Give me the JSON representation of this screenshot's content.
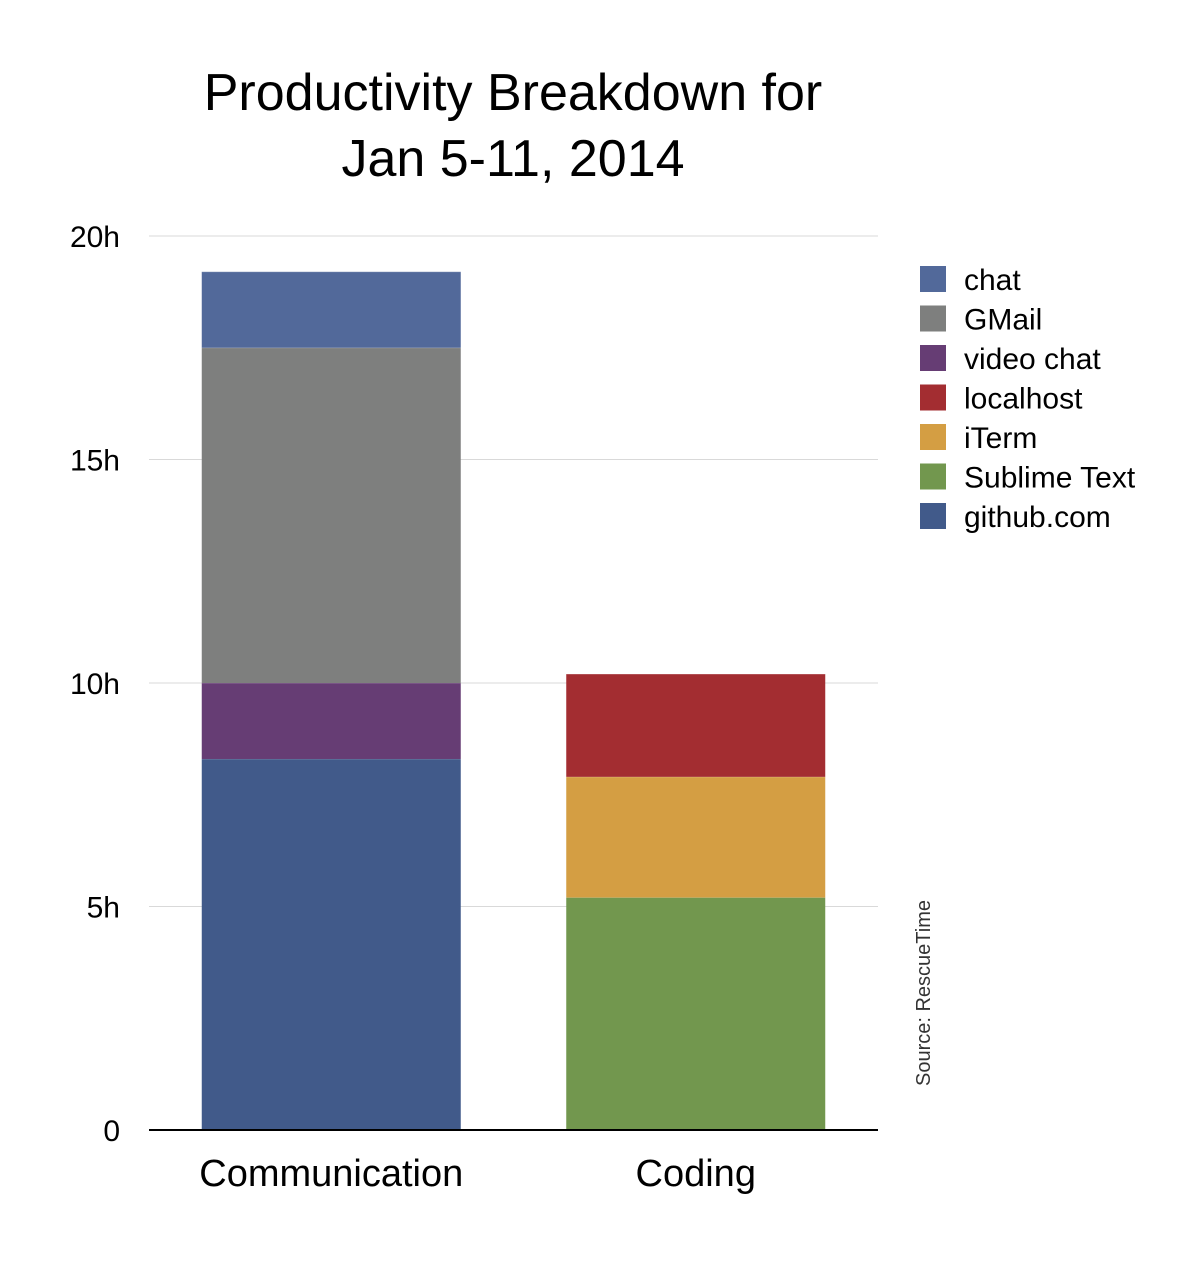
{
  "chart_data": {
    "type": "bar",
    "stacked": true,
    "title_lines": [
      "Productivity Breakdown for",
      "Jan 5-11, 2014"
    ],
    "xlabel": "",
    "ylabel": "",
    "categories": [
      "Communication",
      "Coding"
    ],
    "yticks": [
      "0",
      "5h",
      "10h",
      "15h",
      "20h"
    ],
    "ytick_values": [
      0,
      5,
      10,
      15,
      20
    ],
    "ylim": [
      0,
      20
    ],
    "grid": true,
    "legend_position": "right",
    "series": [
      {
        "name": "github.com",
        "color": "#415A8A",
        "values": [
          8.3,
          0
        ]
      },
      {
        "name": "video chat",
        "color": "#663D74",
        "values": [
          1.7,
          0
        ]
      },
      {
        "name": "GMail",
        "color": "#7E7F7E",
        "values": [
          7.5,
          0
        ]
      },
      {
        "name": "chat",
        "color": "#52699A",
        "values": [
          1.7,
          0
        ]
      },
      {
        "name": "Sublime Text",
        "color": "#72974E",
        "values": [
          0,
          5.2
        ]
      },
      {
        "name": "iTerm",
        "color": "#D49E43",
        "values": [
          0,
          2.7
        ]
      },
      {
        "name": "localhost",
        "color": "#A32D31",
        "values": [
          0,
          2.3
        ]
      }
    ],
    "legend_order": [
      "chat",
      "GMail",
      "video chat",
      "localhost",
      "iTerm",
      "Sublime Text",
      "github.com"
    ],
    "source_note": "Source: RescueTime"
  }
}
